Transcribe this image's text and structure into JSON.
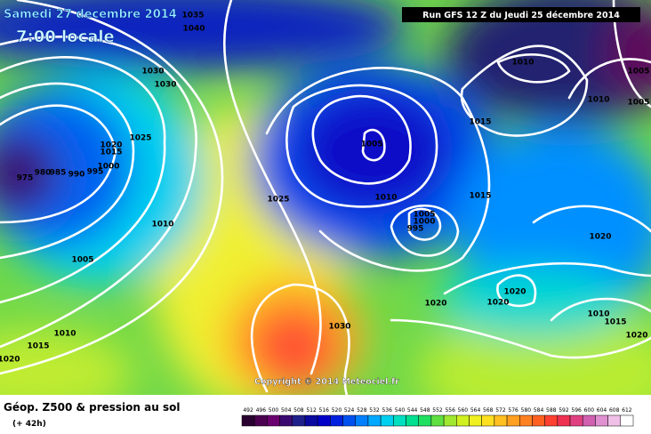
{
  "header": {
    "title": "Samedi 27 decembre 2014",
    "time": "7:00 locale",
    "run": "Run GFS 12 Z du Jeudi 25 décembre 2014"
  },
  "copyright": "Copyright © 2014 Meteociel.fr",
  "footer": {
    "title": "Géop. Z500 & pression au sol",
    "lead": "(+ 42h)"
  },
  "isobar_labels": [
    1035,
    1040,
    1030,
    1030,
    1025,
    1020,
    1015,
    1000,
    975,
    980,
    985,
    990,
    995,
    1010,
    1005,
    1010,
    1015,
    1020,
    1025,
    1030,
    1005,
    1010,
    1005,
    1000,
    995,
    1015,
    1015,
    1010,
    1010,
    1005,
    1005,
    1020,
    1020,
    1020,
    1020,
    1010,
    1015,
    1020
  ],
  "scale_values": [
    492,
    496,
    500,
    504,
    508,
    512,
    516,
    520,
    524,
    528,
    532,
    536,
    540,
    544,
    548,
    552,
    556,
    560,
    564,
    568,
    572,
    576,
    580,
    584,
    588,
    592,
    596,
    600,
    604,
    608,
    612
  ],
  "scale_colors": [
    "#2a0030",
    "#4b0050",
    "#6a0070",
    "#3a0a70",
    "#20208a",
    "#0a0aa0",
    "#0000c8",
    "#0020e0",
    "#0050f0",
    "#0080ff",
    "#00a8ff",
    "#00d0f0",
    "#00e0c0",
    "#00e090",
    "#20e060",
    "#60e040",
    "#a0e830",
    "#d0f020",
    "#f0f020",
    "#ffe020",
    "#ffc020",
    "#ffa020",
    "#ff8020",
    "#ff6020",
    "#ff4030",
    "#f03050",
    "#e04080",
    "#d060b0",
    "#e090d0",
    "#f0c0e8",
    "#ffffff"
  ]
}
